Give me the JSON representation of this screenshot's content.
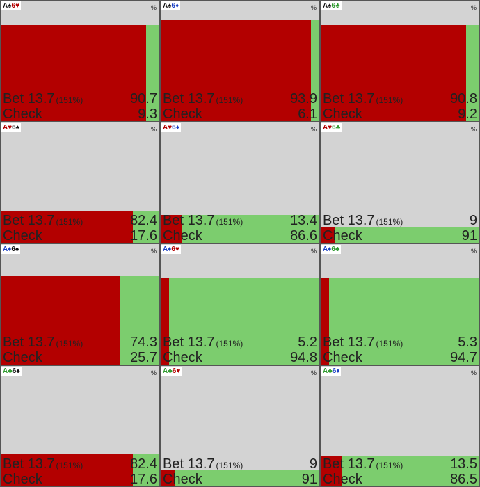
{
  "unit": "%",
  "actions": [
    {
      "name": "Bet 13.7",
      "note": "(151%)",
      "color": "#b30000"
    },
    {
      "name": "Check",
      "color": "#7ccd6e"
    }
  ],
  "cells": [
    {
      "hand": [
        {
          "text": "A♠",
          "color": "#111111"
        },
        {
          "text": "6♥",
          "color": "#b30000"
        }
      ],
      "weight": 0.79,
      "values": [
        90.7,
        9.3
      ]
    },
    {
      "hand": [
        {
          "text": "A♠",
          "color": "#111111"
        },
        {
          "text": "6♦",
          "color": "#1a3fc4"
        }
      ],
      "weight": 0.83,
      "values": [
        93.9,
        6.1
      ]
    },
    {
      "hand": [
        {
          "text": "A♠",
          "color": "#111111"
        },
        {
          "text": "6♣",
          "color": "#2e9a2e"
        }
      ],
      "weight": 0.79,
      "values": [
        90.8,
        9.2
      ]
    },
    {
      "hand": [
        {
          "text": "A♥",
          "color": "#b30000"
        },
        {
          "text": "6♠",
          "color": "#111111"
        }
      ],
      "weight": 0.26,
      "values": [
        82.4,
        17.6
      ]
    },
    {
      "hand": [
        {
          "text": "A♥",
          "color": "#b30000"
        },
        {
          "text": "6♦",
          "color": "#1a3fc4"
        }
      ],
      "weight": 0.23,
      "values": [
        13.4,
        86.6
      ]
    },
    {
      "hand": [
        {
          "text": "A♥",
          "color": "#b30000"
        },
        {
          "text": "6♣",
          "color": "#2e9a2e"
        }
      ],
      "weight": 0.13,
      "values": [
        9,
        91
      ]
    },
    {
      "hand": [
        {
          "text": "A♦",
          "color": "#1a3fc4"
        },
        {
          "text": "6♠",
          "color": "#111111"
        }
      ],
      "weight": 0.73,
      "values": [
        74.3,
        25.7
      ]
    },
    {
      "hand": [
        {
          "text": "A♦",
          "color": "#1a3fc4"
        },
        {
          "text": "6♥",
          "color": "#b30000"
        }
      ],
      "weight": 0.71,
      "values": [
        5.2,
        94.8
      ]
    },
    {
      "hand": [
        {
          "text": "A♦",
          "color": "#1a3fc4"
        },
        {
          "text": "6♣",
          "color": "#2e9a2e"
        }
      ],
      "weight": 0.71,
      "values": [
        5.3,
        94.7
      ]
    },
    {
      "hand": [
        {
          "text": "A♣",
          "color": "#2e9a2e"
        },
        {
          "text": "6♠",
          "color": "#111111"
        }
      ],
      "weight": 0.27,
      "values": [
        82.4,
        17.6
      ]
    },
    {
      "hand": [
        {
          "text": "A♣",
          "color": "#2e9a2e"
        },
        {
          "text": "6♥",
          "color": "#b30000"
        }
      ],
      "weight": 0.14,
      "values": [
        9,
        91
      ]
    },
    {
      "hand": [
        {
          "text": "A♣",
          "color": "#2e9a2e"
        },
        {
          "text": "6♦",
          "color": "#1a3fc4"
        }
      ],
      "weight": 0.25,
      "values": [
        13.5,
        86.5
      ]
    }
  ]
}
